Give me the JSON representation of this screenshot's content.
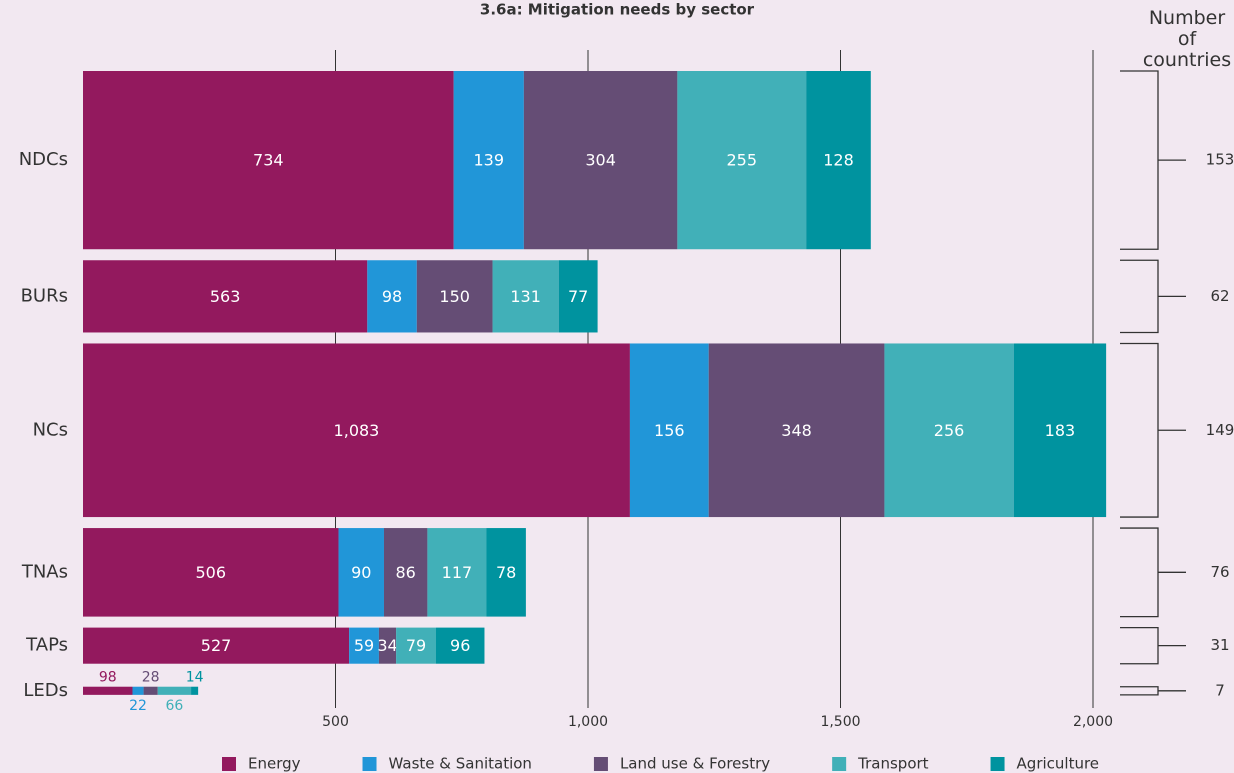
{
  "chart_data": {
    "type": "bar",
    "orientation": "horizontal",
    "stacked": true,
    "title": "3.6a: Mitigation needs by sector",
    "categories": [
      "NDCs",
      "BURs",
      "NCs",
      "TNAs",
      "TAPs",
      "LEDs"
    ],
    "series": [
      {
        "name": "Energy",
        "color": "#93195e",
        "values": [
          734,
          563,
          1083,
          506,
          527,
          98
        ],
        "value_labels": [
          "734",
          "563",
          "1,083",
          "506",
          "527",
          "98"
        ]
      },
      {
        "name": "Waste & Sanitation",
        "color": "#2196d8",
        "values": [
          139,
          98,
          156,
          90,
          59,
          22
        ]
      },
      {
        "name": "Land use & Forestry",
        "color": "#654d75",
        "values": [
          304,
          150,
          348,
          86,
          34,
          28
        ]
      },
      {
        "name": "Transport",
        "color": "#41b0b8",
        "values": [
          255,
          131,
          256,
          117,
          79,
          66
        ]
      },
      {
        "name": "Agriculture",
        "color": "#00939f",
        "values": [
          128,
          77,
          183,
          78,
          96,
          14
        ]
      }
    ],
    "xlim": [
      0,
      2000
    ],
    "xticks": [
      500,
      {
        "value": 1000,
        "label": "1,000"
      },
      {
        "value": 1500,
        "label": "1,500"
      },
      {
        "value": 2000,
        "label": "2,000"
      }
    ],
    "grid": true,
    "legend": "bottom",
    "countries_label": "Number of countries",
    "countries": [
      153,
      62,
      149,
      76,
      31,
      7
    ]
  }
}
